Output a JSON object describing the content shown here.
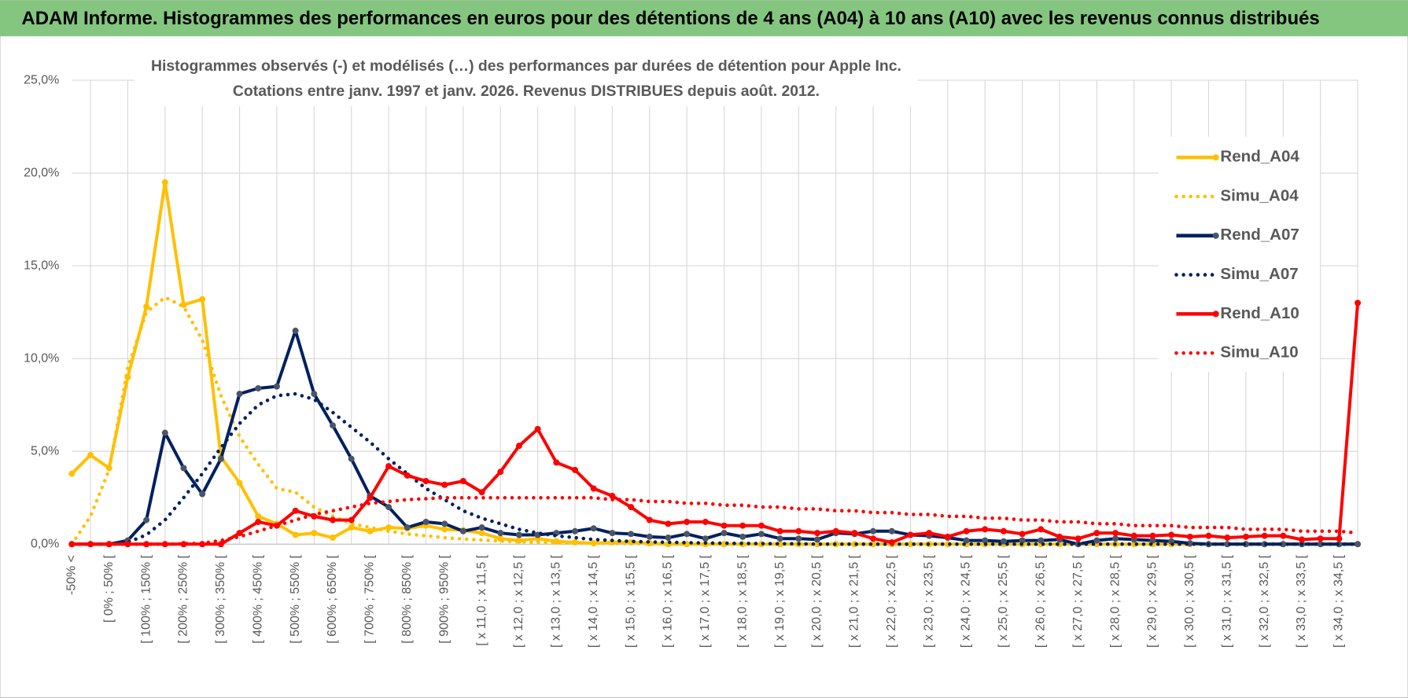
{
  "header": {
    "title": "ADAM Informe. Histogrammes des performances en euros pour des détentions de 4 ans (A04) à 10 ans (A10) avec les revenus connus distribués"
  },
  "chart_data": {
    "type": "line",
    "title": "Histogrammes observés (-) et modélisés (…) des performances par durées de détention pour Apple Inc.",
    "subtitle": "Cotations entre janv. 1997 et janv. 2026. Revenus DISTRIBUES depuis août. 2012.",
    "categories": [
      "-50% <",
      null,
      "[ 0% ; 50% [",
      null,
      "[ 100% ; 150% [",
      null,
      "[ 200% ; 250% [",
      null,
      "[ 300% ; 350% [",
      null,
      "[ 400% ; 450% [",
      null,
      "[ 500% ; 550% [",
      null,
      "[ 600% ; 650% [",
      null,
      "[ 700% ; 750% [",
      null,
      "[ 800% ; 850% [",
      null,
      "[ 900% ; 950% [",
      null,
      "[ x 11,0 ; x 11,5 [",
      null,
      "[ x 12,0 ; x 12,5 [",
      null,
      "[ x 13,0 ; x 13,5 [",
      null,
      "[ x 14,0 ; x 14,5 [",
      null,
      "[ x 15,0 ; x 15,5 [",
      null,
      "[ x 16,0 ; x 16,5 [",
      null,
      "[ x 17,0 ; x 17,5 [",
      null,
      "[ x 18,0 ; x 18,5 [",
      null,
      "[ x 19,0 ; x 19,5 [",
      null,
      "[ x 20,0 ; x 20,5 [",
      null,
      "[ x 21,0 ; x 21,5 [",
      null,
      "[ x 22,0 ; x 22,5 [",
      null,
      "[ x 23,0 ; x 23,5 [",
      null,
      "[ x 24,0 ; x 24,5 [",
      null,
      "[ x 25,0 ; x 25,5 [",
      null,
      "[ x 26,0 ; x 26,5 [",
      null,
      "[ x 27,0 ; x 27,5 [",
      null,
      "[ x 28,0 ; x 28,5 [",
      null,
      "[ x 29,0 ; x 29,5 [",
      null,
      "[ x 30,0 ; x 30,5 [",
      null,
      "[ x 31,0 ; x 31,5 [",
      null,
      "[ x 32,0 ; x 32,5 [",
      null,
      "[ x 33,0 ; x 33,5 [",
      null,
      "[ x 34,0 ; x 34,5 [",
      null
    ],
    "ylim": [
      0,
      25
    ],
    "yticks": [
      {
        "value": 0,
        "label": "0,0%"
      },
      {
        "value": 5,
        "label": "5,0%"
      },
      {
        "value": 10,
        "label": "10,0%"
      },
      {
        "value": 15,
        "label": "15,0%"
      },
      {
        "value": 20,
        "label": "20,0%"
      },
      {
        "value": 25,
        "label": "25,0%"
      }
    ],
    "grid": true,
    "legend": "right",
    "series": [
      {
        "name": "Rend_A04",
        "color": "#ffc000",
        "style": "solid",
        "marker": true,
        "values": [
          3.8,
          4.8,
          4.1,
          9.0,
          12.8,
          19.5,
          12.9,
          13.2,
          4.7,
          3.3,
          1.5,
          1.1,
          0.5,
          0.6,
          0.35,
          0.9,
          0.7,
          0.9,
          0.85,
          1.0,
          0.8,
          0.75,
          0.6,
          0.3,
          0.2,
          0.3,
          0.15,
          0.1,
          0.05,
          0.1,
          0.1,
          0.05,
          0,
          0,
          0,
          0,
          0,
          0,
          0,
          0,
          0,
          0,
          0,
          0,
          0,
          0,
          0,
          0,
          0,
          0,
          0,
          0,
          0,
          0,
          0,
          0,
          0,
          0,
          0,
          0,
          0,
          0,
          0,
          0,
          0,
          0,
          0,
          0,
          0,
          0
        ]
      },
      {
        "name": "Simu_A04",
        "color": "#ffc000",
        "style": "dotted",
        "marker": false,
        "values": [
          0,
          1.5,
          4.0,
          9.5,
          12.5,
          13.3,
          12.8,
          11.0,
          8.0,
          5.8,
          4.3,
          3.0,
          2.8,
          2.0,
          1.5,
          1.1,
          0.9,
          0.7,
          0.55,
          0.45,
          0.35,
          0.28,
          0.22,
          0.17,
          0.13,
          0.1,
          0.08,
          0.06,
          0.05,
          0.04,
          0.03,
          0.02,
          0.02,
          0.01,
          0.01,
          0,
          0,
          0,
          0,
          0,
          0,
          0,
          0,
          0,
          0,
          0,
          0,
          0,
          0,
          0,
          0,
          0,
          0,
          0,
          0,
          0,
          0,
          0,
          0,
          0,
          0,
          0,
          0,
          0,
          0,
          0,
          0,
          0,
          0,
          0
        ]
      },
      {
        "name": "Rend_A07",
        "color": "#002060",
        "style": "solid",
        "marker": true,
        "marker_color": "#4a5568",
        "values": [
          0,
          0,
          0,
          0.2,
          1.3,
          6.0,
          4.1,
          2.7,
          4.6,
          8.1,
          8.4,
          8.5,
          11.5,
          8.1,
          6.4,
          4.6,
          2.6,
          2.0,
          0.9,
          1.2,
          1.1,
          0.7,
          0.9,
          0.6,
          0.5,
          0.5,
          0.6,
          0.7,
          0.85,
          0.6,
          0.55,
          0.4,
          0.35,
          0.55,
          0.3,
          0.6,
          0.4,
          0.55,
          0.3,
          0.3,
          0.25,
          0.6,
          0.55,
          0.7,
          0.7,
          0.5,
          0.45,
          0.35,
          0.2,
          0.2,
          0.15,
          0.2,
          0.2,
          0.25,
          0,
          0.2,
          0.3,
          0.25,
          0.2,
          0.15,
          0.05,
          0,
          0,
          0,
          0,
          0,
          0,
          0,
          0,
          0
        ]
      },
      {
        "name": "Simu_A07",
        "color": "#002060",
        "style": "dotted",
        "marker": false,
        "values": [
          0,
          0,
          0,
          0.1,
          0.5,
          1.3,
          2.5,
          3.8,
          5.2,
          6.5,
          7.5,
          8.0,
          8.1,
          7.8,
          7.1,
          6.3,
          5.5,
          4.6,
          3.8,
          3.0,
          2.4,
          1.8,
          1.4,
          1.1,
          0.8,
          0.6,
          0.45,
          0.35,
          0.25,
          0.2,
          0.15,
          0.12,
          0.1,
          0.08,
          0.06,
          0.05,
          0.04,
          0.03,
          0.02,
          0.02,
          0,
          0,
          0,
          0,
          0,
          0,
          0,
          0,
          0,
          0,
          0,
          0,
          0,
          0,
          0,
          0,
          0,
          0,
          0,
          0,
          0,
          0,
          0,
          0,
          0,
          0,
          0,
          0,
          0,
          0
        ]
      },
      {
        "name": "Rend_A10",
        "color": "#ff0000",
        "style": "solid",
        "marker": true,
        "values": [
          0,
          0,
          0,
          0,
          0,
          0,
          0,
          0,
          0,
          0.6,
          1.2,
          1.0,
          1.8,
          1.5,
          1.3,
          1.3,
          2.5,
          4.2,
          3.7,
          3.4,
          3.2,
          3.4,
          2.8,
          3.9,
          5.3,
          6.2,
          4.4,
          4.0,
          3.0,
          2.6,
          2.0,
          1.3,
          1.1,
          1.2,
          1.2,
          1.0,
          1.0,
          1.0,
          0.7,
          0.7,
          0.6,
          0.7,
          0.6,
          0.3,
          0.1,
          0.5,
          0.6,
          0.4,
          0.7,
          0.8,
          0.7,
          0.55,
          0.8,
          0.4,
          0.3,
          0.6,
          0.6,
          0.45,
          0.45,
          0.5,
          0.4,
          0.45,
          0.35,
          0.4,
          0.45,
          0.45,
          0.25,
          0.3,
          0.3,
          13.0
        ]
      },
      {
        "name": "Simu_A10",
        "color": "#ff0000",
        "style": "dotted",
        "marker": false,
        "values": [
          0,
          0,
          0,
          0,
          0,
          0,
          0.02,
          0.05,
          0.2,
          0.4,
          0.7,
          1.0,
          1.3,
          1.6,
          1.8,
          2.0,
          2.2,
          2.3,
          2.4,
          2.45,
          2.5,
          2.5,
          2.5,
          2.5,
          2.5,
          2.5,
          2.5,
          2.5,
          2.5,
          2.4,
          2.4,
          2.3,
          2.3,
          2.2,
          2.2,
          2.1,
          2.1,
          2.0,
          2.0,
          1.9,
          1.9,
          1.8,
          1.8,
          1.7,
          1.7,
          1.6,
          1.6,
          1.5,
          1.5,
          1.4,
          1.4,
          1.3,
          1.3,
          1.2,
          1.2,
          1.1,
          1.1,
          1.0,
          1.0,
          1.0,
          0.9,
          0.9,
          0.9,
          0.8,
          0.8,
          0.8,
          0.7,
          0.7,
          0.7,
          0.6
        ]
      }
    ]
  }
}
